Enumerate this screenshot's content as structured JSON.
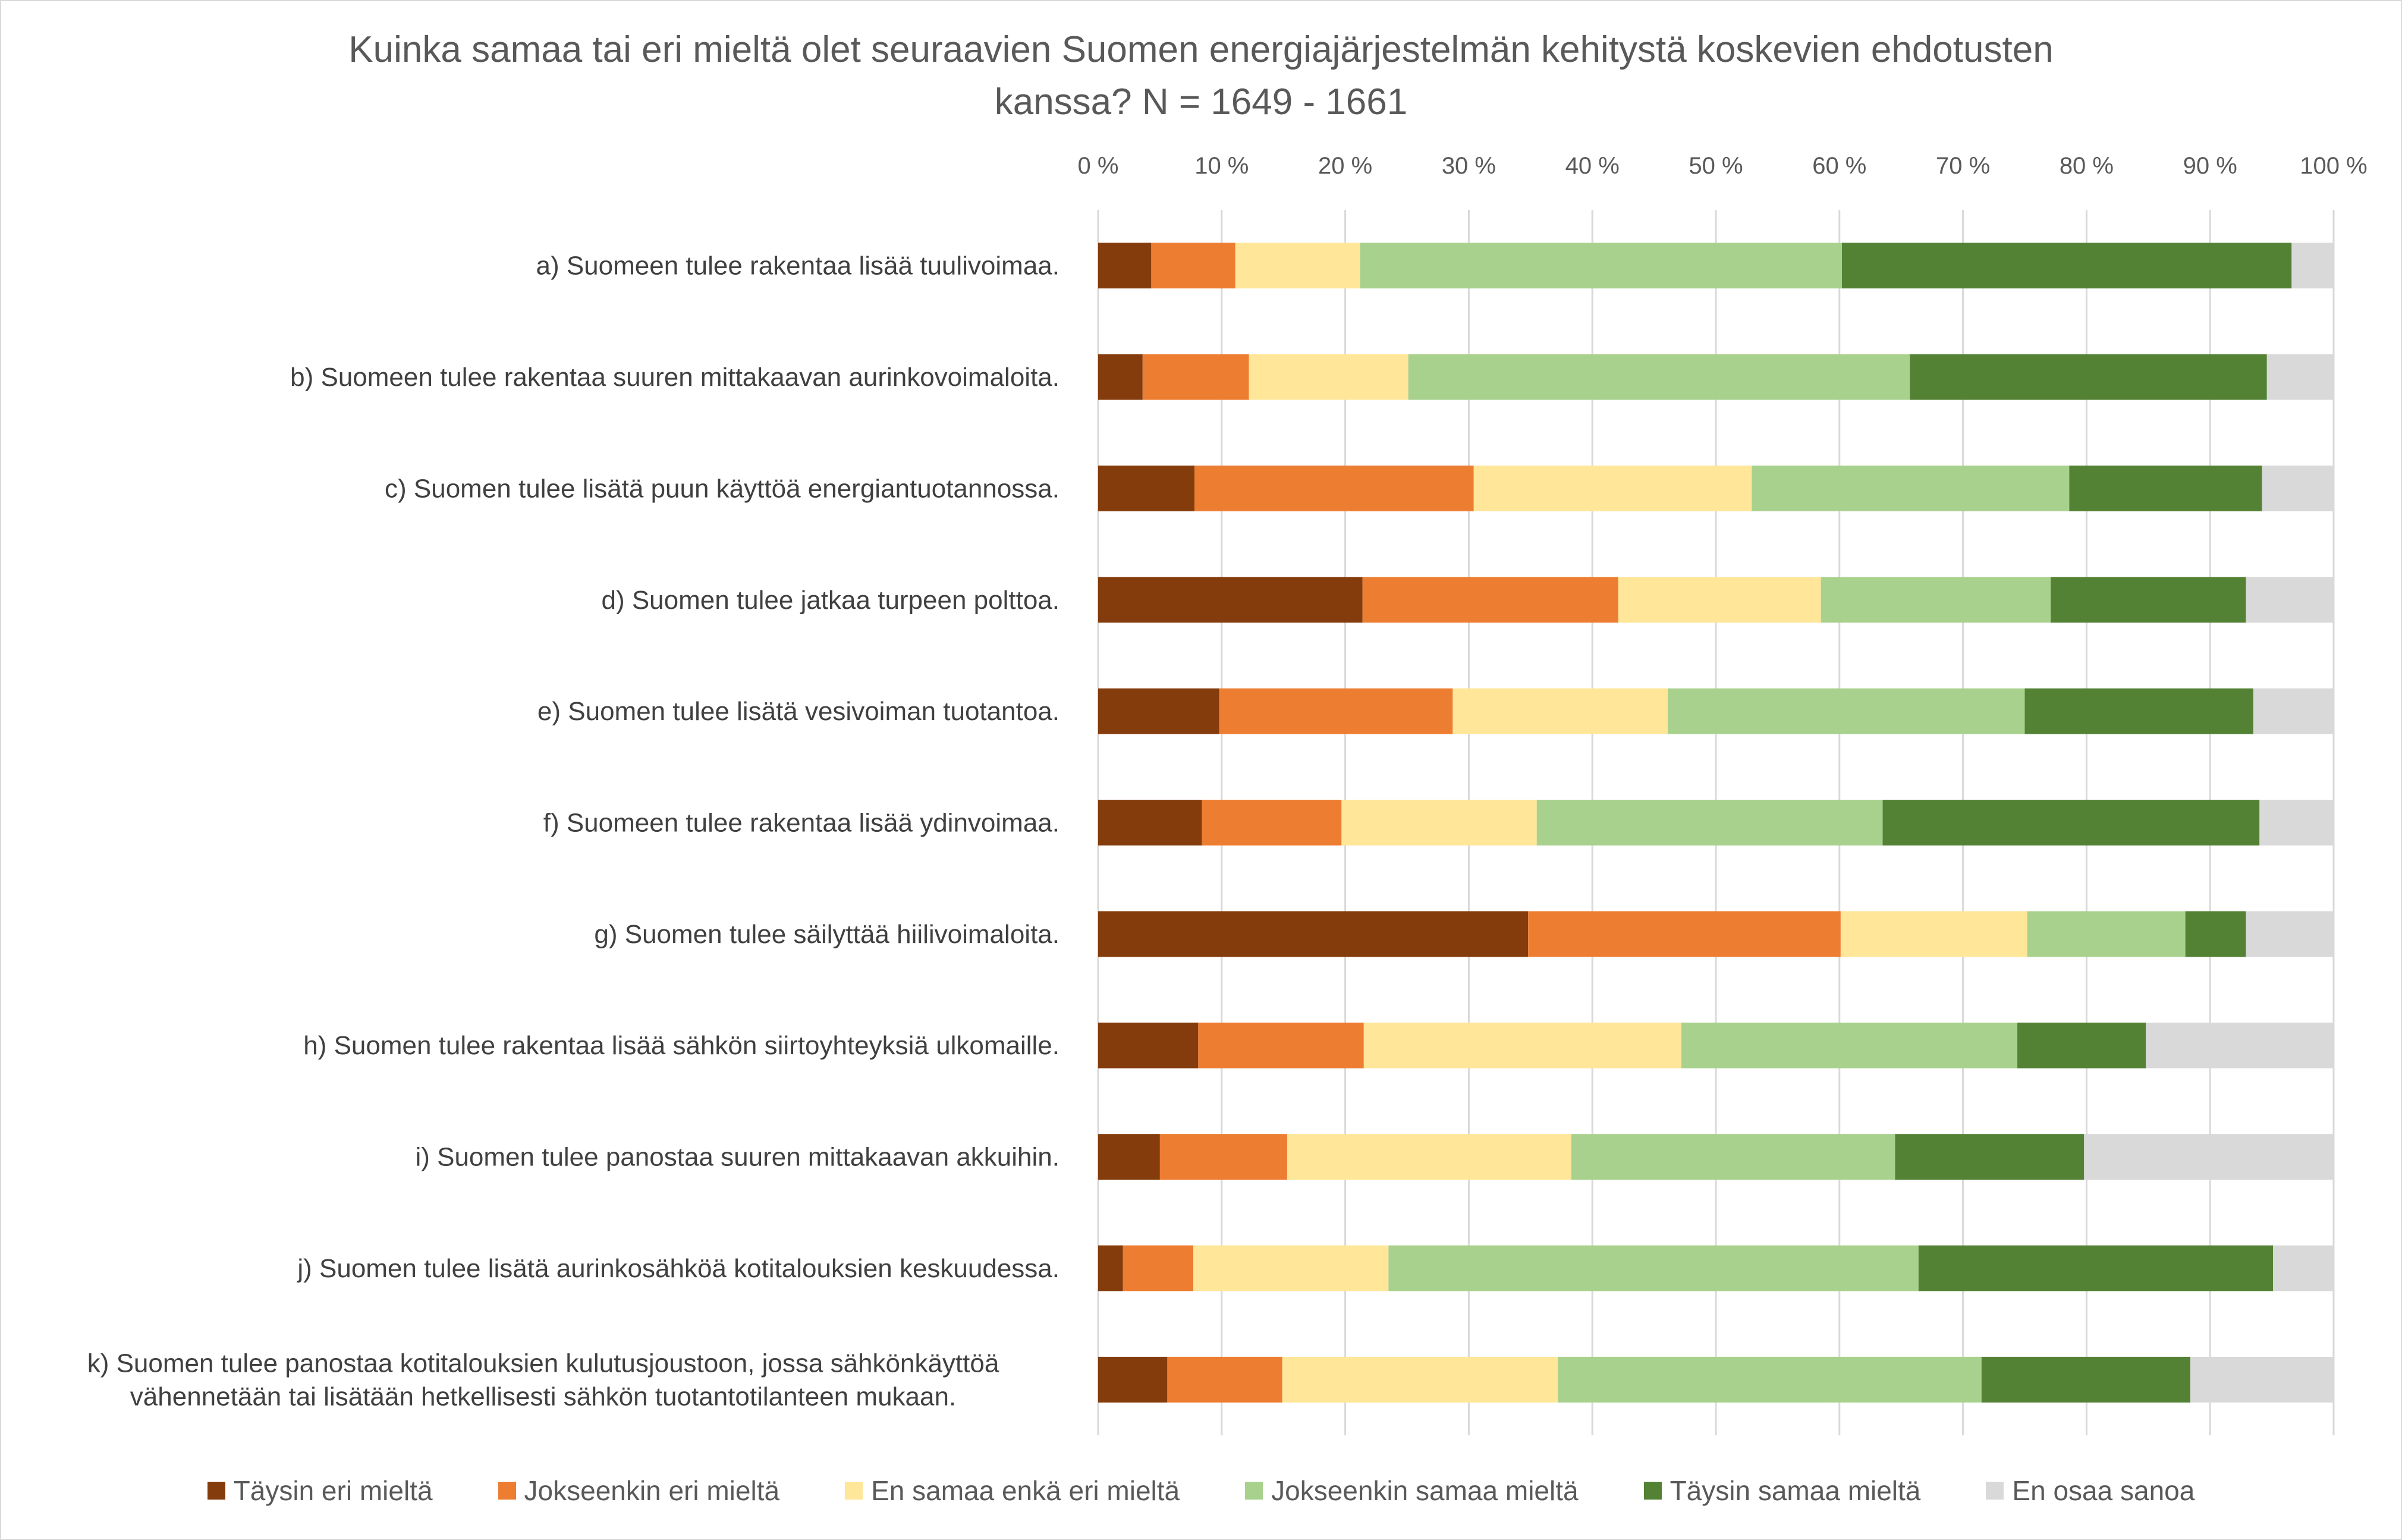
{
  "chart_data": {
    "type": "bar",
    "orientation": "horizontal",
    "stacked": "100%",
    "title": "Kuinka samaa tai eri mieltä olet seuraavien Suomen energiajärjestelmän kehitystä koskevien ehdotusten kanssa? N = 1649 - 1661",
    "title_lines": [
      "Kuinka samaa tai eri mieltä olet seuraavien Suomen energiajärjestelmän kehitystä koskevien ehdotusten",
      "kanssa? N = 1649 - 1661"
    ],
    "xlabel": "",
    "ylabel": "",
    "xlim": [
      0,
      100
    ],
    "x_axis_position": "top",
    "grid": true,
    "legend_position": "bottom",
    "x_ticks": [
      "0 %",
      "10 %",
      "20 %",
      "30 %",
      "40 %",
      "50 %",
      "60 %",
      "70 %",
      "80 %",
      "90 %",
      "100 %"
    ],
    "categories": [
      [
        "a) Suomeen tulee rakentaa lisää tuulivoimaa."
      ],
      [
        "b) Suomeen tulee rakentaa suuren mittakaavan aurinkovoimaloita."
      ],
      [
        "c) Suomen tulee lisätä puun käyttöä energiantuotannossa."
      ],
      [
        "d) Suomen tulee jatkaa turpeen polttoa."
      ],
      [
        "e) Suomen tulee lisätä vesivoiman tuotantoa."
      ],
      [
        "f) Suomeen tulee rakentaa lisää ydinvoimaa."
      ],
      [
        "g) Suomen tulee säilyttää hiilivoimaloita."
      ],
      [
        "h) Suomen tulee rakentaa lisää sähkön siirtoyhteyksiä ulkomaille."
      ],
      [
        "i) Suomen tulee panostaa suuren mittakaavan akkuihin."
      ],
      [
        "j) Suomen tulee lisätä aurinkosähköä kotitalouksien keskuudessa."
      ],
      [
        "k) Suomen tulee panostaa kotitalouksien kulutusjoustoon, jossa sähkönkäyttöä",
        "vähennetään tai lisätään hetkellisesti sähkön tuotantotilanteen mukaan."
      ]
    ],
    "series": [
      {
        "name": "Täysin eri mieltä",
        "color": "#843C0C",
        "values": [
          4.3,
          3.6,
          7.8,
          21.4,
          9.8,
          8.4,
          34.8,
          8.1,
          5.0,
          2.0,
          5.6
        ]
      },
      {
        "name": "Jokseenkin eri mieltä",
        "color": "#ED7D31",
        "values": [
          6.8,
          8.6,
          22.6,
          20.7,
          18.9,
          11.3,
          25.3,
          13.4,
          10.3,
          5.7,
          9.3
        ]
      },
      {
        "name": "En samaa enkä eri mieltä",
        "color": "#FFE699",
        "values": [
          10.1,
          12.9,
          22.5,
          16.4,
          17.4,
          15.8,
          15.1,
          25.7,
          23.0,
          15.8,
          22.3
        ]
      },
      {
        "name": "Jokseenkin samaa mieltä",
        "color": "#A9D18E",
        "values": [
          39.0,
          40.6,
          25.7,
          18.6,
          28.9,
          28.0,
          12.8,
          27.2,
          26.2,
          42.9,
          34.3
        ]
      },
      {
        "name": "Täysin samaa mieltä",
        "color": "#548235",
        "values": [
          36.4,
          28.9,
          15.6,
          15.8,
          18.5,
          30.5,
          4.9,
          10.4,
          15.3,
          28.7,
          16.9
        ]
      },
      {
        "name": "En osaa sanoa",
        "color": "#D9D9D9",
        "values": [
          3.4,
          5.4,
          5.8,
          7.1,
          6.5,
          6.0,
          7.1,
          15.2,
          20.2,
          4.9,
          11.6
        ]
      }
    ]
  }
}
